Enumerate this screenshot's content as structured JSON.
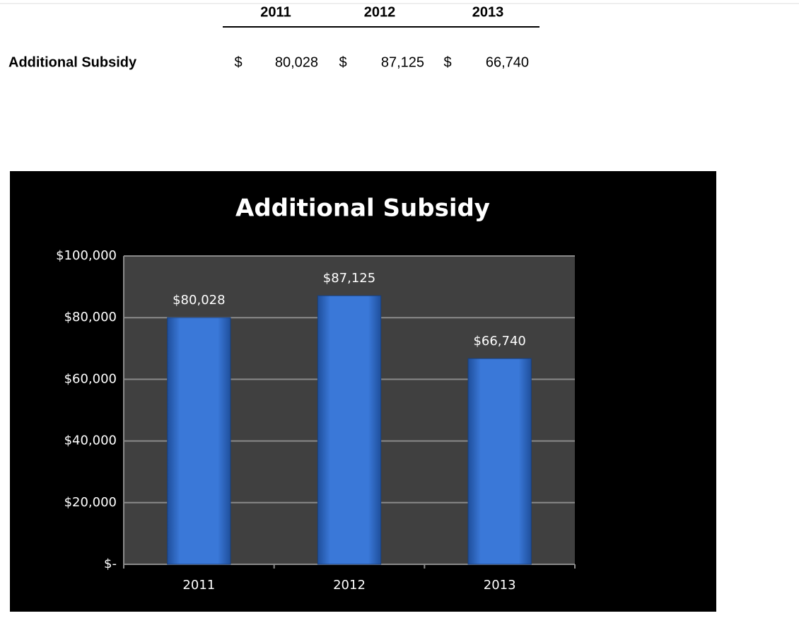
{
  "table": {
    "columns": [
      "2011",
      "2012",
      "2013"
    ],
    "rows": [
      {
        "label": "Additional Subsidy",
        "cells": [
          {
            "currency": "$",
            "amount": "80,028"
          },
          {
            "currency": "$",
            "amount": "87,125"
          },
          {
            "currency": "$",
            "amount": "66,740"
          }
        ]
      }
    ]
  },
  "chart_data": {
    "type": "bar",
    "title": "Additional Subsidy",
    "categories": [
      "2011",
      "2012",
      "2013"
    ],
    "values": [
      80028,
      87125,
      66740
    ],
    "value_labels": [
      "$80,028",
      "$87,125",
      "$66,740"
    ],
    "color": "#3a78d8",
    "ylim": [
      0,
      100000
    ],
    "yticks": [
      {
        "value": 0,
        "label": "$-"
      },
      {
        "value": 20000,
        "label": "$20,000"
      },
      {
        "value": 40000,
        "label": "$40,000"
      },
      {
        "value": 60000,
        "label": "$60,000"
      },
      {
        "value": 80000,
        "label": "$80,000"
      },
      {
        "value": 100000,
        "label": "$100,000"
      }
    ],
    "grid": true
  }
}
